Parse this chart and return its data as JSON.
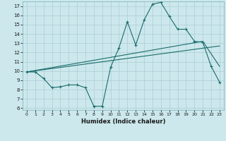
{
  "xlabel": "Humidex (Indice chaleur)",
  "background_color": "#cce8ec",
  "grid_color": "#aacdd4",
  "line_color": "#1a6b6b",
  "xlim": [
    -0.5,
    23.5
  ],
  "ylim": [
    5.8,
    17.5
  ],
  "xticks": [
    0,
    1,
    2,
    3,
    4,
    5,
    6,
    7,
    8,
    9,
    10,
    11,
    12,
    13,
    14,
    15,
    16,
    17,
    18,
    19,
    20,
    21,
    22,
    23
  ],
  "yticks": [
    6,
    7,
    8,
    9,
    10,
    11,
    12,
    13,
    14,
    15,
    16,
    17
  ],
  "line1_x": [
    0,
    1,
    2,
    3,
    4,
    5,
    6,
    7,
    8,
    9,
    10,
    11,
    12,
    13,
    14,
    15,
    16,
    17,
    18,
    19,
    20,
    21,
    22,
    23
  ],
  "line1_y": [
    9.9,
    9.9,
    9.2,
    8.2,
    8.3,
    8.5,
    8.5,
    8.2,
    6.2,
    6.2,
    10.4,
    12.5,
    15.3,
    12.8,
    15.5,
    17.2,
    17.4,
    15.9,
    14.5,
    14.5,
    13.2,
    13.1,
    10.5,
    8.8
  ],
  "line2_x": [
    0,
    21,
    23
  ],
  "line2_y": [
    9.9,
    13.2,
    10.5
  ],
  "line3_x": [
    0,
    23
  ],
  "line3_y": [
    9.9,
    12.7
  ]
}
